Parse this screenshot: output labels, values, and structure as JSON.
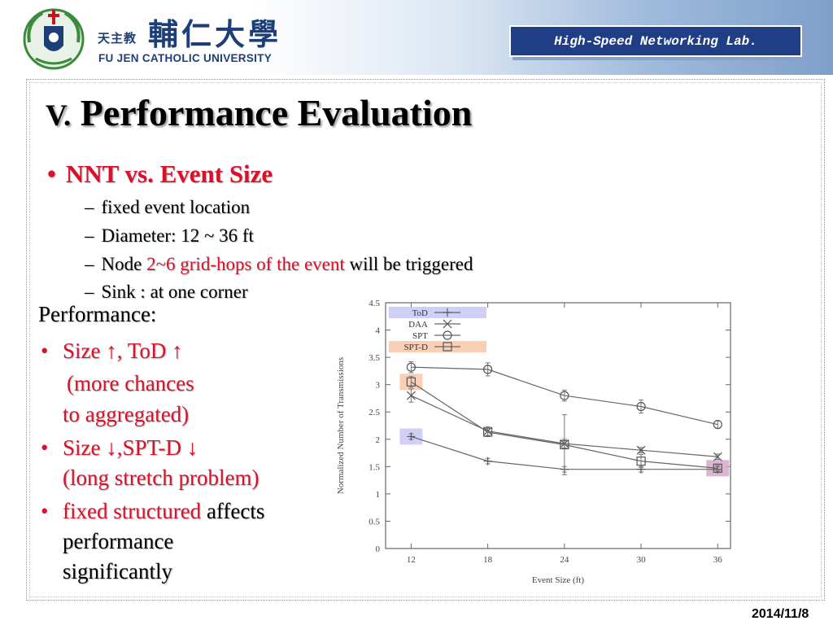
{
  "header": {
    "university_name_cn": "輔仁大學",
    "university_sub_cn": "天主教",
    "university_name_en": "FU JEN CATHOLIC UNIVERSITY",
    "lab_name": "High-Speed Networking Lab.",
    "logo_icon": "university-crest-icon",
    "colors": {
      "accent_blue": "#1f3e86",
      "text_blue": "#1c3f78"
    }
  },
  "slide": {
    "title_lead": "V.",
    "title_rest": " Performance Evaluation",
    "bullet_main": "NNT vs. Event Size",
    "sub_bullets": [
      {
        "text": "fixed event location"
      },
      {
        "text": "Diameter: 12 ~ 36 ft"
      },
      {
        "before": "Node ",
        "highlight": "2~6 grid-hops of the event",
        "after": " will be triggered"
      },
      {
        "text": "Sink : at one corner"
      }
    ],
    "performance": {
      "heading": "Performance:",
      "item1_line1": "Size ↑, ToD ↑",
      "item1_line2": "(more chances",
      "item1_line3": "to aggregated)",
      "item2_line1": "Size ↓,SPT-D ↓",
      "item2_line2": "(long stretch problem)",
      "item3_red": "fixed structured",
      "item3_black": "affects",
      "item3_line2": "performance",
      "item3_line3": "significantly"
    },
    "date": "2014/11/8",
    "colors": {
      "highlight_red": "#d9122c"
    }
  },
  "chart_data": {
    "type": "line",
    "xlabel": "Event Size (ft)",
    "ylabel": "Normalized Number of Transmissions",
    "x": [
      12,
      18,
      24,
      30,
      36
    ],
    "xlim": [
      10,
      37
    ],
    "ylim": [
      0,
      4.5
    ],
    "yticks": [
      "0",
      "0.5",
      "1",
      "1.5",
      "2",
      "2.5",
      "3",
      "3.5",
      "4",
      "4.5"
    ],
    "grid": false,
    "legend_position": "top-left",
    "series": [
      {
        "name": "ToD",
        "marker": "plus",
        "values": [
          2.05,
          1.6,
          1.45,
          1.45,
          1.45
        ],
        "err": [
          0.05,
          0.05,
          0.05,
          0.05,
          0.05
        ],
        "legend_highlight": "#c8c8f5"
      },
      {
        "name": "DAA",
        "marker": "x",
        "values": [
          2.8,
          2.15,
          1.92,
          1.8,
          1.68
        ],
        "err": [
          0.12,
          0.08,
          0.08,
          0.05,
          0.05
        ]
      },
      {
        "name": "SPT",
        "marker": "circle",
        "values": [
          3.32,
          3.28,
          2.8,
          2.6,
          2.27
        ],
        "err": [
          0.1,
          0.12,
          0.1,
          0.12,
          0.07
        ]
      },
      {
        "name": "SPT-D",
        "marker": "square",
        "values": [
          3.05,
          2.13,
          1.9,
          1.6,
          1.47
        ],
        "err": [
          0.1,
          0.08,
          0.55,
          0.12,
          0.05
        ],
        "legend_highlight": "#f8c8a8"
      }
    ],
    "highlights": [
      {
        "series": "ToD",
        "x": 12,
        "color": "#c8c8f5"
      },
      {
        "series": "SPT-D",
        "x": 12,
        "color": "#f8c8a8"
      },
      {
        "series": "SPT-D",
        "x": 36,
        "color": "#d7a8c8"
      }
    ]
  }
}
